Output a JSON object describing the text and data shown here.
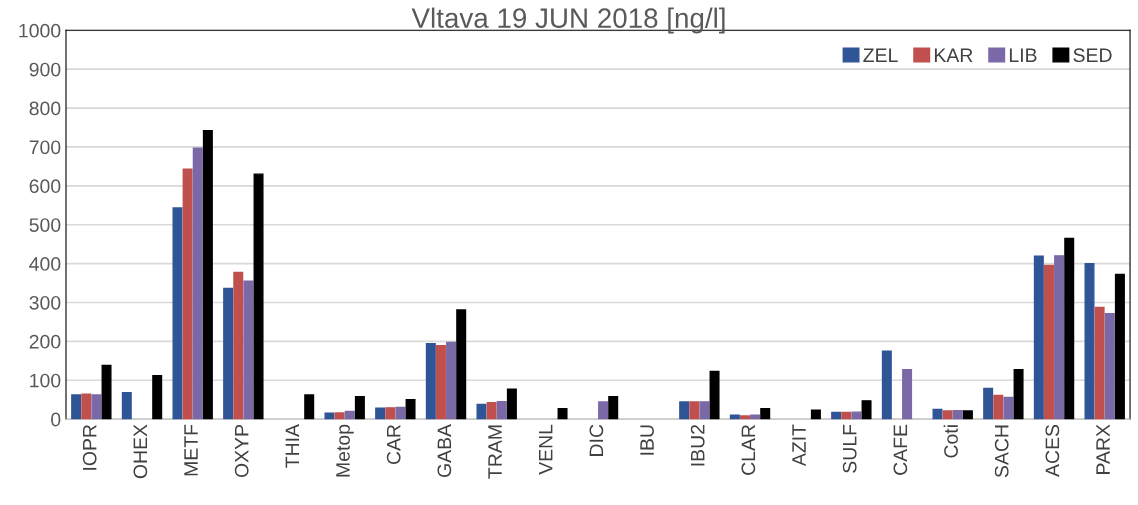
{
  "chart_data": {
    "type": "bar",
    "title": "Vltava 19 JUN 2018 [ng/l]",
    "categories": [
      "IOPR",
      "OHEX",
      "METF",
      "OXYP",
      "THIA",
      "Metop",
      "CAR",
      "GABA",
      "TRAM",
      "VENL",
      "DIC",
      "IBU",
      "IBU2",
      "CLAR",
      "AZIT",
      "SULF",
      "CAFE",
      "Coti",
      "SACH",
      "ACES",
      "PARX"
    ],
    "series": [
      {
        "name": "ZEL",
        "color": "#2f5597",
        "values": [
          62,
          68,
          543,
          336,
          null,
          15,
          28,
          194,
          38,
          null,
          null,
          null,
          44,
          10,
          null,
          17,
          175,
          25,
          79,
          419,
          400
        ]
      },
      {
        "name": "KAR",
        "color": "#c0504d",
        "values": [
          64,
          null,
          643,
          377,
          null,
          16,
          29,
          189,
          42,
          null,
          null,
          null,
          44,
          8,
          null,
          17,
          null,
          21,
          61,
          395,
          287
        ]
      },
      {
        "name": "LIB",
        "color": "#7b68a6",
        "values": [
          62,
          null,
          697,
          355,
          null,
          20,
          30,
          197,
          45,
          null,
          44,
          null,
          44,
          10,
          null,
          18,
          127,
          22,
          56,
          420,
          271
        ]
      },
      {
        "name": "SED",
        "color": "#000000",
        "values": [
          138,
          112,
          742,
          630,
          62,
          58,
          50,
          281,
          77,
          27,
          58,
          null,
          123,
          27,
          23,
          47,
          null,
          21,
          127,
          465,
          372
        ]
      }
    ],
    "ylim": [
      0,
      1000
    ],
    "yticks": [
      0,
      100,
      200,
      300,
      400,
      500,
      600,
      700,
      800,
      900,
      1000
    ],
    "grid": "y",
    "legend": "top right"
  }
}
